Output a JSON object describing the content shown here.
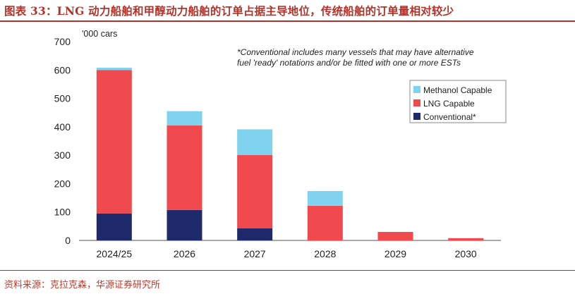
{
  "figure": {
    "title": "图表 33：LNG 动力船舶和甲醇动力船舶的订单占据主导地位，传统船舶的订单量相对较少",
    "source": "资料来源：克拉克森，华源证券研究所"
  },
  "chart_data": {
    "type": "bar",
    "stacked": true,
    "unit_label": "'000 cars",
    "categories": [
      "2024/25",
      "2026",
      "2027",
      "2028",
      "2029",
      "2030"
    ],
    "series": [
      {
        "name": "Conventional*",
        "color": "#1f2a6b",
        "values": [
          95,
          107,
          43,
          0,
          0,
          0
        ]
      },
      {
        "name": "LNG Capable",
        "color": "#f04a4f",
        "values": [
          505,
          298,
          258,
          122,
          30,
          8
        ]
      },
      {
        "name": "Methanol Capable",
        "color": "#7fd3ef",
        "values": [
          8,
          50,
          90,
          52,
          0,
          0
        ]
      }
    ],
    "ylim": [
      0,
      700
    ],
    "yticks": [
      0,
      100,
      200,
      300,
      400,
      500,
      600,
      700
    ],
    "legend_position": "right",
    "legend_order": [
      "Methanol Capable",
      "LNG Capable",
      "Conventional*"
    ],
    "annotation": [
      "*Conventional includes many vessels that may have alternative",
      "fuel 'ready' notations and/or be fitted with one or more ESTs"
    ]
  }
}
